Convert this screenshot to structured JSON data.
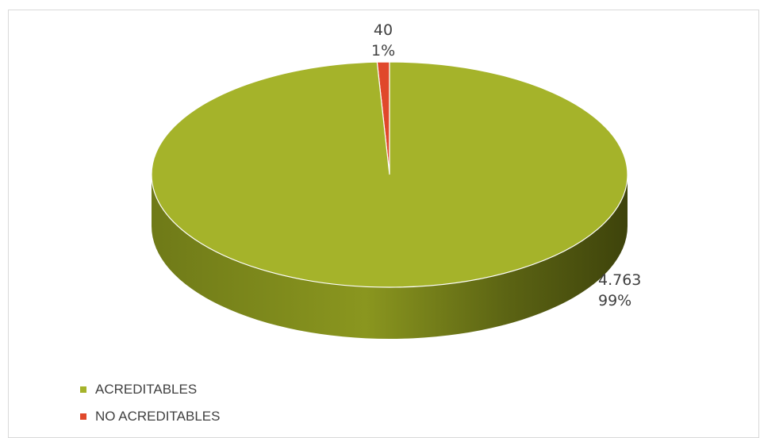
{
  "chart_data": {
    "type": "pie",
    "title": "",
    "categories": [
      "ACREDITABLES",
      "NO ACREDITABLES"
    ],
    "values": [
      4763,
      40
    ],
    "value_labels": [
      "4.763",
      "40"
    ],
    "percent_labels": [
      "99%",
      "1%"
    ],
    "colors": [
      "#a5b32a",
      "#e0482b"
    ],
    "legend_placement": "bottom-left",
    "style": "3d"
  }
}
